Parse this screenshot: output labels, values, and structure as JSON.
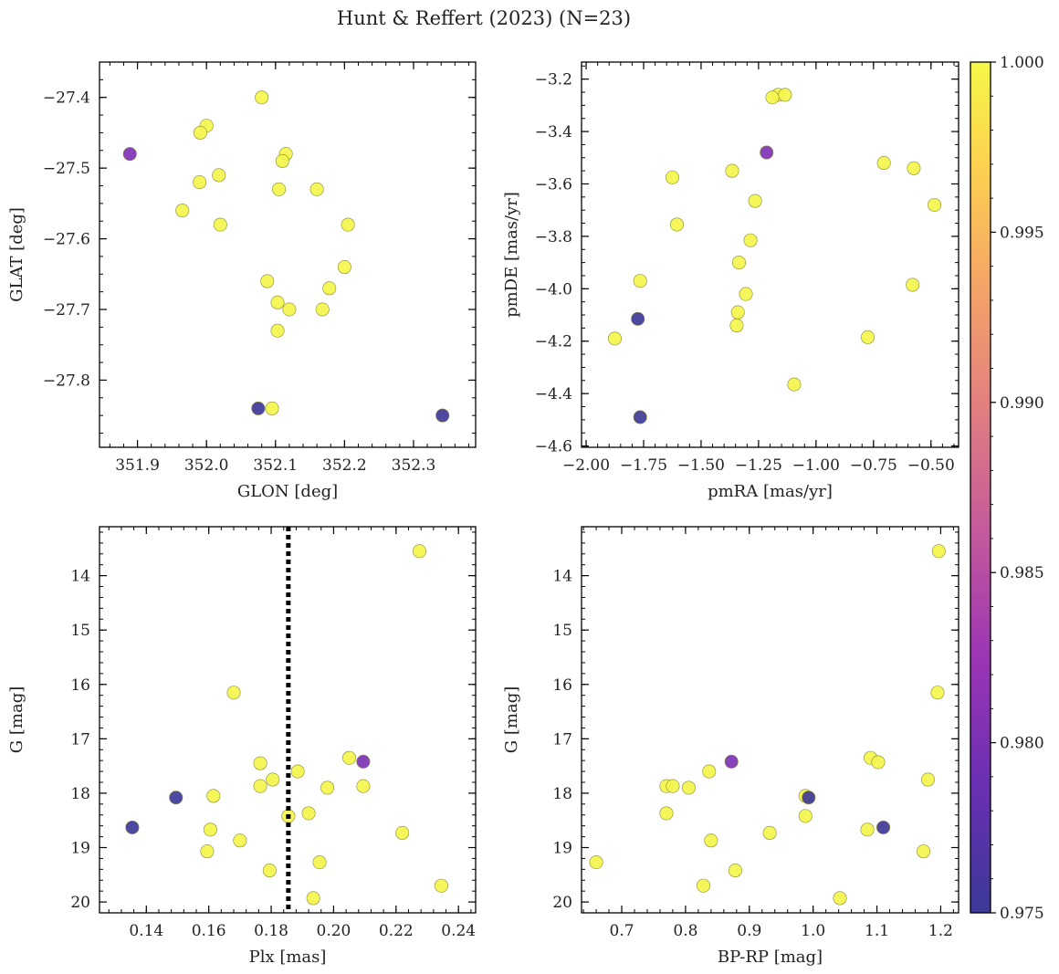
{
  "figure": {
    "title": "Hunt & Reffert (2023) (N=23)"
  },
  "colorbar": {
    "min": 0.975,
    "max": 1.0,
    "ticks": [
      "0.975",
      "0.980",
      "0.985",
      "0.990",
      "0.995",
      "1.000"
    ],
    "tick_values": [
      0.975,
      0.98,
      0.985,
      0.99,
      0.995,
      1.0
    ],
    "colormap": "plasma"
  },
  "chart_data": [
    {
      "type": "scatter",
      "id": "glon-glat",
      "xlabel": "GLON [deg]",
      "ylabel": "GLAT [deg]",
      "xlim": [
        351.845,
        352.39
      ],
      "ylim": [
        -27.895,
        -27.35
      ],
      "invert_y": false,
      "xticks": [
        351.9,
        352.0,
        352.1,
        352.2,
        352.3
      ],
      "xtick_labels": [
        "351.9",
        "352.0",
        "352.1",
        "352.2",
        "352.3"
      ],
      "yticks": [
        -27.4,
        -27.5,
        -27.6,
        -27.7,
        -27.8
      ],
      "ytick_labels": [
        "−27.4",
        "−27.5",
        "−27.6",
        "−27.7",
        "−27.8"
      ],
      "points": [
        {
          "x": 352.08,
          "y": -27.4,
          "p": 1.0
        },
        {
          "x": 352.0,
          "y": -27.44,
          "p": 1.0
        },
        {
          "x": 351.991,
          "y": -27.45,
          "p": 1.0
        },
        {
          "x": 352.115,
          "y": -27.48,
          "p": 1.0
        },
        {
          "x": 352.11,
          "y": -27.49,
          "p": 1.0
        },
        {
          "x": 352.018,
          "y": -27.51,
          "p": 1.0
        },
        {
          "x": 351.99,
          "y": -27.52,
          "p": 1.0
        },
        {
          "x": 352.105,
          "y": -27.53,
          "p": 1.0
        },
        {
          "x": 352.16,
          "y": -27.53,
          "p": 1.0
        },
        {
          "x": 351.965,
          "y": -27.56,
          "p": 1.0
        },
        {
          "x": 352.02,
          "y": -27.58,
          "p": 1.0
        },
        {
          "x": 352.205,
          "y": -27.58,
          "p": 1.0
        },
        {
          "x": 352.2,
          "y": -27.64,
          "p": 1.0
        },
        {
          "x": 352.088,
          "y": -27.66,
          "p": 1.0
        },
        {
          "x": 352.178,
          "y": -27.67,
          "p": 1.0
        },
        {
          "x": 352.103,
          "y": -27.69,
          "p": 1.0
        },
        {
          "x": 352.12,
          "y": -27.7,
          "p": 1.0
        },
        {
          "x": 352.168,
          "y": -27.7,
          "p": 1.0
        },
        {
          "x": 352.103,
          "y": -27.73,
          "p": 1.0
        },
        {
          "x": 352.095,
          "y": -27.84,
          "p": 1.0
        },
        {
          "x": 351.889,
          "y": -27.48,
          "p": 0.9808
        },
        {
          "x": 352.075,
          "y": -27.84,
          "p": 0.9765
        },
        {
          "x": 352.342,
          "y": -27.85,
          "p": 0.976
        }
      ]
    },
    {
      "type": "scatter",
      "id": "pmra-pmde",
      "xlabel": "pmRA [mas/yr]",
      "ylabel": "pmDE [mas/yr]",
      "xlim": [
        -2.02,
        -0.38
      ],
      "ylim": [
        -4.605,
        -3.135
      ],
      "invert_y": false,
      "xticks": [
        -2.0,
        -1.75,
        -1.5,
        -1.25,
        -1.0,
        -0.75,
        -0.5
      ],
      "xtick_labels": [
        "−2.00",
        "−1.75",
        "−1.50",
        "−1.25",
        "−1.00",
        "−0.75",
        "−0.50"
      ],
      "yticks": [
        -3.2,
        -3.4,
        -3.6,
        -3.8,
        -4.0,
        -4.2,
        -4.4,
        -4.6
      ],
      "ytick_labels": [
        "−3.2",
        "−3.4",
        "−3.6",
        "−3.8",
        "−4.0",
        "−4.2",
        "−4.4",
        "−4.6"
      ],
      "points": [
        {
          "x": -1.165,
          "y": -3.26,
          "p": 1.0
        },
        {
          "x": -1.135,
          "y": -3.26,
          "p": 1.0
        },
        {
          "x": -1.19,
          "y": -3.27,
          "p": 1.0
        },
        {
          "x": -0.705,
          "y": -3.52,
          "p": 1.0
        },
        {
          "x": -0.575,
          "y": -3.54,
          "p": 1.0
        },
        {
          "x": -1.365,
          "y": -3.55,
          "p": 1.0
        },
        {
          "x": -1.625,
          "y": -3.575,
          "p": 1.0
        },
        {
          "x": -1.265,
          "y": -3.665,
          "p": 1.0
        },
        {
          "x": -0.485,
          "y": -3.68,
          "p": 1.0
        },
        {
          "x": -1.605,
          "y": -3.755,
          "p": 1.0
        },
        {
          "x": -1.285,
          "y": -3.815,
          "p": 1.0
        },
        {
          "x": -1.335,
          "y": -3.9,
          "p": 1.0
        },
        {
          "x": -1.765,
          "y": -3.97,
          "p": 1.0
        },
        {
          "x": -0.58,
          "y": -3.985,
          "p": 1.0
        },
        {
          "x": -1.305,
          "y": -4.02,
          "p": 1.0
        },
        {
          "x": -1.34,
          "y": -4.09,
          "p": 1.0
        },
        {
          "x": -1.345,
          "y": -4.14,
          "p": 1.0
        },
        {
          "x": -1.875,
          "y": -4.19,
          "p": 1.0
        },
        {
          "x": -0.775,
          "y": -4.185,
          "p": 1.0
        },
        {
          "x": -1.095,
          "y": -4.365,
          "p": 1.0
        },
        {
          "x": -1.215,
          "y": -3.48,
          "p": 0.9808
        },
        {
          "x": -1.775,
          "y": -4.115,
          "p": 0.9765
        },
        {
          "x": -1.765,
          "y": -4.49,
          "p": 0.976
        }
      ]
    },
    {
      "type": "scatter",
      "id": "plx-g",
      "xlabel": "Plx [mas]",
      "ylabel": "G [mag]",
      "xlim": [
        0.125,
        0.2455
      ],
      "ylim": [
        13.1,
        20.2
      ],
      "invert_y": true,
      "vline": {
        "x": 0.1855,
        "style": "dotted"
      },
      "xticks": [
        0.14,
        0.16,
        0.18,
        0.2,
        0.22,
        0.24
      ],
      "xtick_labels": [
        "0.14",
        "0.16",
        "0.18",
        "0.20",
        "0.22",
        "0.24"
      ],
      "yticks": [
        14,
        15,
        16,
        17,
        18,
        19,
        20
      ],
      "ytick_labels": [
        "14",
        "15",
        "16",
        "17",
        "18",
        "19",
        "20"
      ],
      "points": [
        {
          "x": 0.2275,
          "y": 13.55,
          "p": 1.0
        },
        {
          "x": 0.168,
          "y": 16.15,
          "p": 1.0
        },
        {
          "x": 0.205,
          "y": 17.35,
          "p": 1.0
        },
        {
          "x": 0.1765,
          "y": 17.45,
          "p": 1.0
        },
        {
          "x": 0.1885,
          "y": 17.6,
          "p": 1.0
        },
        {
          "x": 0.1805,
          "y": 17.75,
          "p": 1.0
        },
        {
          "x": 0.1765,
          "y": 17.87,
          "p": 1.0
        },
        {
          "x": 0.2095,
          "y": 17.87,
          "p": 1.0
        },
        {
          "x": 0.198,
          "y": 17.9,
          "p": 1.0
        },
        {
          "x": 0.1615,
          "y": 18.05,
          "p": 1.0
        },
        {
          "x": 0.192,
          "y": 18.37,
          "p": 1.0
        },
        {
          "x": 0.1855,
          "y": 18.42,
          "p": 1.0
        },
        {
          "x": 0.1605,
          "y": 18.67,
          "p": 1.0
        },
        {
          "x": 0.222,
          "y": 18.73,
          "p": 1.0
        },
        {
          "x": 0.17,
          "y": 18.87,
          "p": 1.0
        },
        {
          "x": 0.1595,
          "y": 19.07,
          "p": 1.0
        },
        {
          "x": 0.1955,
          "y": 19.27,
          "p": 1.0
        },
        {
          "x": 0.1795,
          "y": 19.42,
          "p": 1.0
        },
        {
          "x": 0.2345,
          "y": 19.7,
          "p": 1.0
        },
        {
          "x": 0.1935,
          "y": 19.93,
          "p": 1.0
        },
        {
          "x": 0.2095,
          "y": 17.42,
          "p": 0.9808
        },
        {
          "x": 0.1495,
          "y": 18.08,
          "p": 0.9765
        },
        {
          "x": 0.1355,
          "y": 18.63,
          "p": 0.976
        }
      ]
    },
    {
      "type": "scatter",
      "id": "bprp-g",
      "xlabel": "BP-RP [mag]",
      "ylabel": "G [mag]",
      "xlim": [
        0.637,
        1.228
      ],
      "ylim": [
        13.1,
        20.2
      ],
      "invert_y": true,
      "xticks": [
        0.7,
        0.8,
        0.9,
        1.0,
        1.1,
        1.2
      ],
      "xtick_labels": [
        "0.7",
        "0.8",
        "0.9",
        "1.0",
        "1.1",
        "1.2"
      ],
      "yticks": [
        14,
        15,
        16,
        17,
        18,
        19,
        20
      ],
      "ytick_labels": [
        "14",
        "15",
        "16",
        "17",
        "18",
        "19",
        "20"
      ],
      "points": [
        {
          "x": 1.197,
          "y": 13.55,
          "p": 1.0
        },
        {
          "x": 1.195,
          "y": 16.15,
          "p": 1.0
        },
        {
          "x": 1.09,
          "y": 17.35,
          "p": 1.0
        },
        {
          "x": 1.102,
          "y": 17.43,
          "p": 1.0
        },
        {
          "x": 0.837,
          "y": 17.6,
          "p": 1.0
        },
        {
          "x": 1.18,
          "y": 17.75,
          "p": 1.0
        },
        {
          "x": 0.77,
          "y": 17.87,
          "p": 1.0
        },
        {
          "x": 0.78,
          "y": 17.87,
          "p": 1.0
        },
        {
          "x": 0.805,
          "y": 17.9,
          "p": 1.0
        },
        {
          "x": 0.988,
          "y": 18.05,
          "p": 1.0
        },
        {
          "x": 0.77,
          "y": 18.37,
          "p": 1.0
        },
        {
          "x": 0.988,
          "y": 18.42,
          "p": 1.0
        },
        {
          "x": 1.085,
          "y": 18.67,
          "p": 1.0
        },
        {
          "x": 0.932,
          "y": 18.73,
          "p": 1.0
        },
        {
          "x": 0.84,
          "y": 18.87,
          "p": 1.0
        },
        {
          "x": 1.173,
          "y": 19.07,
          "p": 1.0
        },
        {
          "x": 0.66,
          "y": 19.27,
          "p": 1.0
        },
        {
          "x": 0.878,
          "y": 19.42,
          "p": 1.0
        },
        {
          "x": 0.828,
          "y": 19.7,
          "p": 1.0
        },
        {
          "x": 1.042,
          "y": 19.93,
          "p": 1.0
        },
        {
          "x": 0.872,
          "y": 17.42,
          "p": 0.9808
        },
        {
          "x": 0.993,
          "y": 18.08,
          "p": 0.9765
        },
        {
          "x": 1.11,
          "y": 18.63,
          "p": 0.976
        }
      ]
    }
  ]
}
